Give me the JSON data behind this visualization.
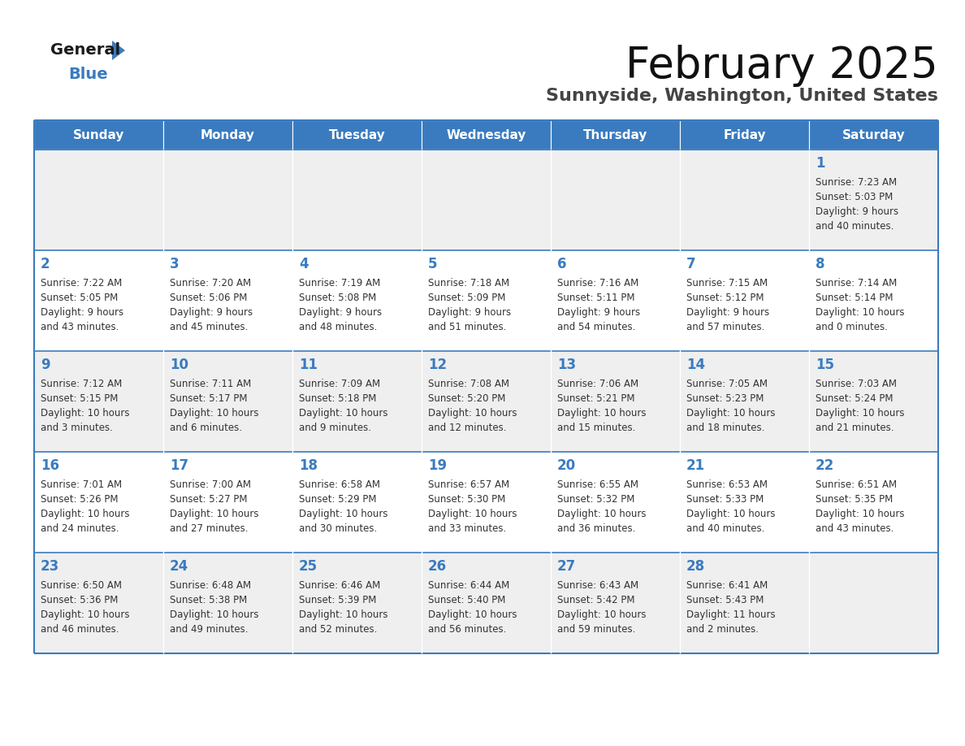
{
  "title": "February 2025",
  "subtitle": "Sunnyside, Washington, United States",
  "header_color": "#3a7bbf",
  "header_text_color": "#ffffff",
  "cell_bg_light": "#efefef",
  "cell_bg_white": "#ffffff",
  "day_number_color": "#3a7bbf",
  "text_color": "#333333",
  "border_color": "#3a7bbf",
  "days_of_week": [
    "Sunday",
    "Monday",
    "Tuesday",
    "Wednesday",
    "Thursday",
    "Friday",
    "Saturday"
  ],
  "weeks": [
    [
      {
        "day": null,
        "info": null
      },
      {
        "day": null,
        "info": null
      },
      {
        "day": null,
        "info": null
      },
      {
        "day": null,
        "info": null
      },
      {
        "day": null,
        "info": null
      },
      {
        "day": null,
        "info": null
      },
      {
        "day": 1,
        "info": "Sunrise: 7:23 AM\nSunset: 5:03 PM\nDaylight: 9 hours\nand 40 minutes."
      }
    ],
    [
      {
        "day": 2,
        "info": "Sunrise: 7:22 AM\nSunset: 5:05 PM\nDaylight: 9 hours\nand 43 minutes."
      },
      {
        "day": 3,
        "info": "Sunrise: 7:20 AM\nSunset: 5:06 PM\nDaylight: 9 hours\nand 45 minutes."
      },
      {
        "day": 4,
        "info": "Sunrise: 7:19 AM\nSunset: 5:08 PM\nDaylight: 9 hours\nand 48 minutes."
      },
      {
        "day": 5,
        "info": "Sunrise: 7:18 AM\nSunset: 5:09 PM\nDaylight: 9 hours\nand 51 minutes."
      },
      {
        "day": 6,
        "info": "Sunrise: 7:16 AM\nSunset: 5:11 PM\nDaylight: 9 hours\nand 54 minutes."
      },
      {
        "day": 7,
        "info": "Sunrise: 7:15 AM\nSunset: 5:12 PM\nDaylight: 9 hours\nand 57 minutes."
      },
      {
        "day": 8,
        "info": "Sunrise: 7:14 AM\nSunset: 5:14 PM\nDaylight: 10 hours\nand 0 minutes."
      }
    ],
    [
      {
        "day": 9,
        "info": "Sunrise: 7:12 AM\nSunset: 5:15 PM\nDaylight: 10 hours\nand 3 minutes."
      },
      {
        "day": 10,
        "info": "Sunrise: 7:11 AM\nSunset: 5:17 PM\nDaylight: 10 hours\nand 6 minutes."
      },
      {
        "day": 11,
        "info": "Sunrise: 7:09 AM\nSunset: 5:18 PM\nDaylight: 10 hours\nand 9 minutes."
      },
      {
        "day": 12,
        "info": "Sunrise: 7:08 AM\nSunset: 5:20 PM\nDaylight: 10 hours\nand 12 minutes."
      },
      {
        "day": 13,
        "info": "Sunrise: 7:06 AM\nSunset: 5:21 PM\nDaylight: 10 hours\nand 15 minutes."
      },
      {
        "day": 14,
        "info": "Sunrise: 7:05 AM\nSunset: 5:23 PM\nDaylight: 10 hours\nand 18 minutes."
      },
      {
        "day": 15,
        "info": "Sunrise: 7:03 AM\nSunset: 5:24 PM\nDaylight: 10 hours\nand 21 minutes."
      }
    ],
    [
      {
        "day": 16,
        "info": "Sunrise: 7:01 AM\nSunset: 5:26 PM\nDaylight: 10 hours\nand 24 minutes."
      },
      {
        "day": 17,
        "info": "Sunrise: 7:00 AM\nSunset: 5:27 PM\nDaylight: 10 hours\nand 27 minutes."
      },
      {
        "day": 18,
        "info": "Sunrise: 6:58 AM\nSunset: 5:29 PM\nDaylight: 10 hours\nand 30 minutes."
      },
      {
        "day": 19,
        "info": "Sunrise: 6:57 AM\nSunset: 5:30 PM\nDaylight: 10 hours\nand 33 minutes."
      },
      {
        "day": 20,
        "info": "Sunrise: 6:55 AM\nSunset: 5:32 PM\nDaylight: 10 hours\nand 36 minutes."
      },
      {
        "day": 21,
        "info": "Sunrise: 6:53 AM\nSunset: 5:33 PM\nDaylight: 10 hours\nand 40 minutes."
      },
      {
        "day": 22,
        "info": "Sunrise: 6:51 AM\nSunset: 5:35 PM\nDaylight: 10 hours\nand 43 minutes."
      }
    ],
    [
      {
        "day": 23,
        "info": "Sunrise: 6:50 AM\nSunset: 5:36 PM\nDaylight: 10 hours\nand 46 minutes."
      },
      {
        "day": 24,
        "info": "Sunrise: 6:48 AM\nSunset: 5:38 PM\nDaylight: 10 hours\nand 49 minutes."
      },
      {
        "day": 25,
        "info": "Sunrise: 6:46 AM\nSunset: 5:39 PM\nDaylight: 10 hours\nand 52 minutes."
      },
      {
        "day": 26,
        "info": "Sunrise: 6:44 AM\nSunset: 5:40 PM\nDaylight: 10 hours\nand 56 minutes."
      },
      {
        "day": 27,
        "info": "Sunrise: 6:43 AM\nSunset: 5:42 PM\nDaylight: 10 hours\nand 59 minutes."
      },
      {
        "day": 28,
        "info": "Sunrise: 6:41 AM\nSunset: 5:43 PM\nDaylight: 11 hours\nand 2 minutes."
      },
      {
        "day": null,
        "info": null
      }
    ]
  ],
  "logo_general_color": "#1a1a1a",
  "logo_blue_color": "#3a7bbf",
  "logo_triangle_color": "#3a7bbf"
}
